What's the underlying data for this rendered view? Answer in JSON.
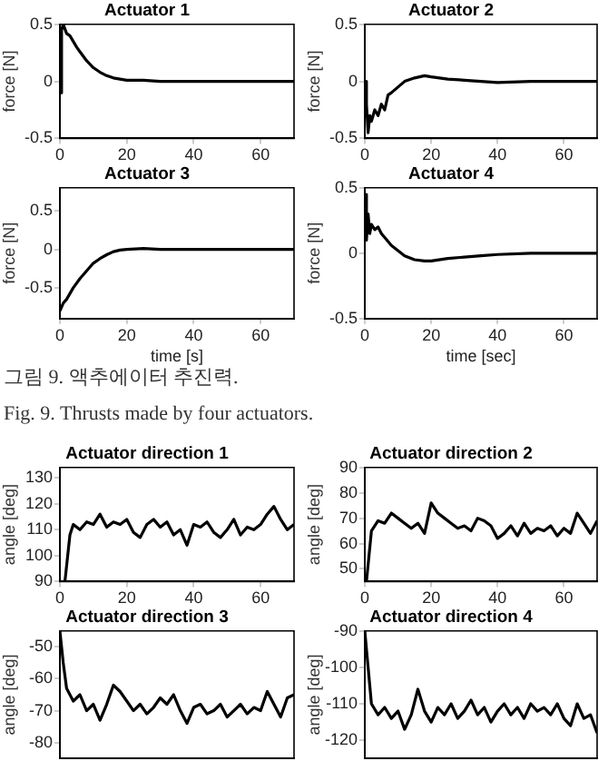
{
  "chart_data": [
    {
      "type": "line",
      "title": "Actuator 1",
      "ylabel": "force [N]",
      "xlim": [
        0,
        70
      ],
      "xticks": [
        0,
        20,
        40,
        60
      ],
      "ylim": [
        -0.5,
        0.5
      ],
      "yticks": [
        -0.5,
        0,
        0.5
      ],
      "grid": false,
      "legend": false,
      "series": [
        {
          "color": "#000000",
          "x": [
            0,
            0.5,
            1,
            2,
            3,
            4,
            5,
            6,
            7,
            8,
            10,
            12,
            14,
            16,
            18,
            20,
            25,
            30,
            40,
            50,
            60,
            70
          ],
          "values": [
            -0.1,
            0.45,
            0.5,
            0.42,
            0.4,
            0.35,
            0.3,
            0.26,
            0.22,
            0.18,
            0.12,
            0.08,
            0.05,
            0.03,
            0.02,
            0.01,
            0.01,
            0,
            0,
            0,
            0,
            0
          ]
        }
      ]
    },
    {
      "type": "line",
      "title": "Actuator 2",
      "ylabel": "force [N]",
      "xlim": [
        0,
        70
      ],
      "xticks": [
        0,
        20,
        40,
        60
      ],
      "ylim": [
        -0.5,
        0.5
      ],
      "yticks": [
        -0.5,
        0,
        0.5
      ],
      "grid": false,
      "legend": false,
      "series": [
        {
          "color": "#000000",
          "x": [
            0,
            0.5,
            1,
            1.5,
            2,
            3,
            4,
            5,
            6,
            7,
            8,
            10,
            12,
            15,
            18,
            20,
            25,
            30,
            35,
            40,
            50,
            60,
            70
          ],
          "values": [
            0,
            -0.2,
            -0.45,
            -0.3,
            -0.35,
            -0.25,
            -0.3,
            -0.2,
            -0.25,
            -0.12,
            -0.1,
            -0.05,
            0,
            0.03,
            0.05,
            0.04,
            0.02,
            0.01,
            0,
            -0.01,
            0,
            0,
            0
          ]
        }
      ]
    },
    {
      "type": "line",
      "title": "Actuator 3",
      "xlabel": "time [s]",
      "ylabel": "force [N]",
      "xlim": [
        0,
        70
      ],
      "xticks": [
        0,
        20,
        40,
        60
      ],
      "ylim": [
        -0.9,
        0.8
      ],
      "yticks": [
        -0.5,
        0,
        0.5
      ],
      "grid": false,
      "legend": false,
      "series": [
        {
          "color": "#000000",
          "x": [
            0,
            1,
            2,
            4,
            6,
            8,
            10,
            12,
            14,
            16,
            18,
            20,
            25,
            30,
            40,
            50,
            60,
            70
          ],
          "values": [
            -0.8,
            -0.7,
            -0.65,
            -0.5,
            -0.38,
            -0.28,
            -0.18,
            -0.12,
            -0.07,
            -0.03,
            -0.01,
            0,
            0.01,
            0,
            0,
            0,
            0,
            0
          ]
        }
      ]
    },
    {
      "type": "line",
      "title": "Actuator 4",
      "xlabel": "time [sec]",
      "ylabel": "force [N]",
      "xlim": [
        0,
        70
      ],
      "xticks": [
        0,
        20,
        40,
        60
      ],
      "ylim": [
        -0.5,
        0.5
      ],
      "yticks": [
        -0.5,
        0,
        0.5
      ],
      "grid": false,
      "legend": false,
      "series": [
        {
          "color": "#000000",
          "x": [
            0,
            0.5,
            1,
            1.5,
            2,
            3,
            4,
            5,
            6,
            8,
            10,
            12,
            15,
            18,
            20,
            25,
            30,
            35,
            40,
            50,
            60,
            70
          ],
          "values": [
            0.45,
            0.1,
            0.3,
            0.15,
            0.22,
            0.18,
            0.2,
            0.15,
            0.12,
            0.06,
            0.02,
            -0.02,
            -0.05,
            -0.06,
            -0.06,
            -0.04,
            -0.03,
            -0.02,
            -0.01,
            0,
            0,
            0
          ]
        }
      ]
    },
    {
      "type": "other",
      "annotations": [
        "그림 9. 액추에이터 추진력.",
        "Fig.  9. Thrusts made by four actuators."
      ]
    },
    {
      "type": "line",
      "title": "Actuator direction 1",
      "ylabel": "angle [deg]",
      "xlim": [
        0,
        70
      ],
      "xticks": [
        0,
        20,
        40,
        60
      ],
      "ylim": [
        90,
        134
      ],
      "yticks": [
        90,
        100,
        110,
        120,
        130
      ],
      "grid": false,
      "legend": false,
      "series": [
        {
          "color": "#000000",
          "x": [
            1.5,
            3,
            4,
            6,
            8,
            10,
            12,
            14,
            16,
            18,
            20,
            22,
            24,
            26,
            28,
            30,
            32,
            34,
            36,
            38,
            40,
            42,
            44,
            46,
            48,
            50,
            52,
            54,
            56,
            58,
            60,
            62,
            64,
            66,
            68,
            70
          ],
          "values": [
            90,
            108,
            112,
            110,
            113,
            112,
            116,
            111,
            113,
            112,
            114,
            109,
            107,
            112,
            114,
            111,
            113,
            108,
            110,
            104,
            112,
            111,
            113,
            109,
            107,
            110,
            114,
            108,
            111,
            110,
            112,
            116,
            119,
            114,
            110,
            112
          ]
        }
      ]
    },
    {
      "type": "line",
      "title": "Actuator direction 2",
      "ylabel": "angle [deg]",
      "xlim": [
        0,
        70
      ],
      "xticks": [
        0,
        20,
        40,
        60
      ],
      "ylim": [
        45,
        90
      ],
      "yticks": [
        50,
        60,
        70,
        80,
        90
      ],
      "grid": false,
      "legend": false,
      "series": [
        {
          "color": "#000000",
          "x": [
            0.5,
            2,
            4,
            6,
            8,
            10,
            12,
            14,
            16,
            18,
            20,
            22,
            24,
            26,
            28,
            30,
            32,
            34,
            36,
            38,
            40,
            42,
            44,
            46,
            48,
            50,
            52,
            54,
            56,
            58,
            60,
            62,
            64,
            66,
            68,
            70
          ],
          "values": [
            45,
            65,
            69,
            68,
            72,
            70,
            68,
            66,
            68,
            64,
            76,
            72,
            70,
            68,
            66,
            67,
            65,
            70,
            69,
            67,
            62,
            64,
            67,
            63,
            68,
            64,
            66,
            65,
            67,
            63,
            66,
            64,
            72,
            68,
            64,
            69
          ]
        }
      ]
    },
    {
      "type": "line",
      "title": "Actuator direction 3",
      "ylabel": "angle [deg]",
      "xlim": [
        0,
        70
      ],
      "ylim": [
        -85,
        -45
      ],
      "yticks": [
        -80,
        -70,
        -60,
        -50
      ],
      "tick_labels": "y",
      "grid": false,
      "legend": false,
      "series": [
        {
          "color": "#000000",
          "x": [
            0,
            1,
            2,
            4,
            6,
            8,
            10,
            12,
            14,
            16,
            18,
            20,
            22,
            24,
            26,
            28,
            30,
            32,
            34,
            36,
            38,
            40,
            42,
            44,
            46,
            48,
            50,
            52,
            54,
            56,
            58,
            60,
            62,
            64,
            66,
            68,
            70
          ],
          "values": [
            -45,
            -55,
            -63,
            -67,
            -65,
            -70,
            -68,
            -73,
            -68,
            -62,
            -64,
            -67,
            -70,
            -68,
            -71,
            -69,
            -66,
            -68,
            -65,
            -70,
            -74,
            -69,
            -68,
            -71,
            -70,
            -68,
            -72,
            -70,
            -68,
            -71,
            -69,
            -70,
            -64,
            -68,
            -72,
            -66,
            -65
          ]
        }
      ]
    },
    {
      "type": "line",
      "title": "Actuator direction 4",
      "ylabel": "angle [deg]",
      "xlim": [
        0,
        70
      ],
      "ylim": [
        -125,
        -90
      ],
      "yticks": [
        -120,
        -110,
        -100,
        -90
      ],
      "tick_labels": "y",
      "grid": false,
      "legend": false,
      "series": [
        {
          "color": "#000000",
          "x": [
            0,
            1,
            2,
            4,
            6,
            8,
            10,
            12,
            14,
            16,
            18,
            20,
            22,
            24,
            26,
            28,
            30,
            32,
            34,
            36,
            38,
            40,
            42,
            44,
            46,
            48,
            50,
            52,
            54,
            56,
            58,
            60,
            62,
            64,
            66,
            68,
            70
          ],
          "values": [
            -90,
            -100,
            -110,
            -113,
            -111,
            -114,
            -112,
            -117,
            -113,
            -106,
            -112,
            -115,
            -111,
            -113,
            -110,
            -114,
            -112,
            -109,
            -113,
            -111,
            -115,
            -112,
            -110,
            -113,
            -111,
            -114,
            -110,
            -112,
            -111,
            -113,
            -110,
            -114,
            -116,
            -110,
            -114,
            -113,
            -118
          ]
        }
      ]
    }
  ]
}
